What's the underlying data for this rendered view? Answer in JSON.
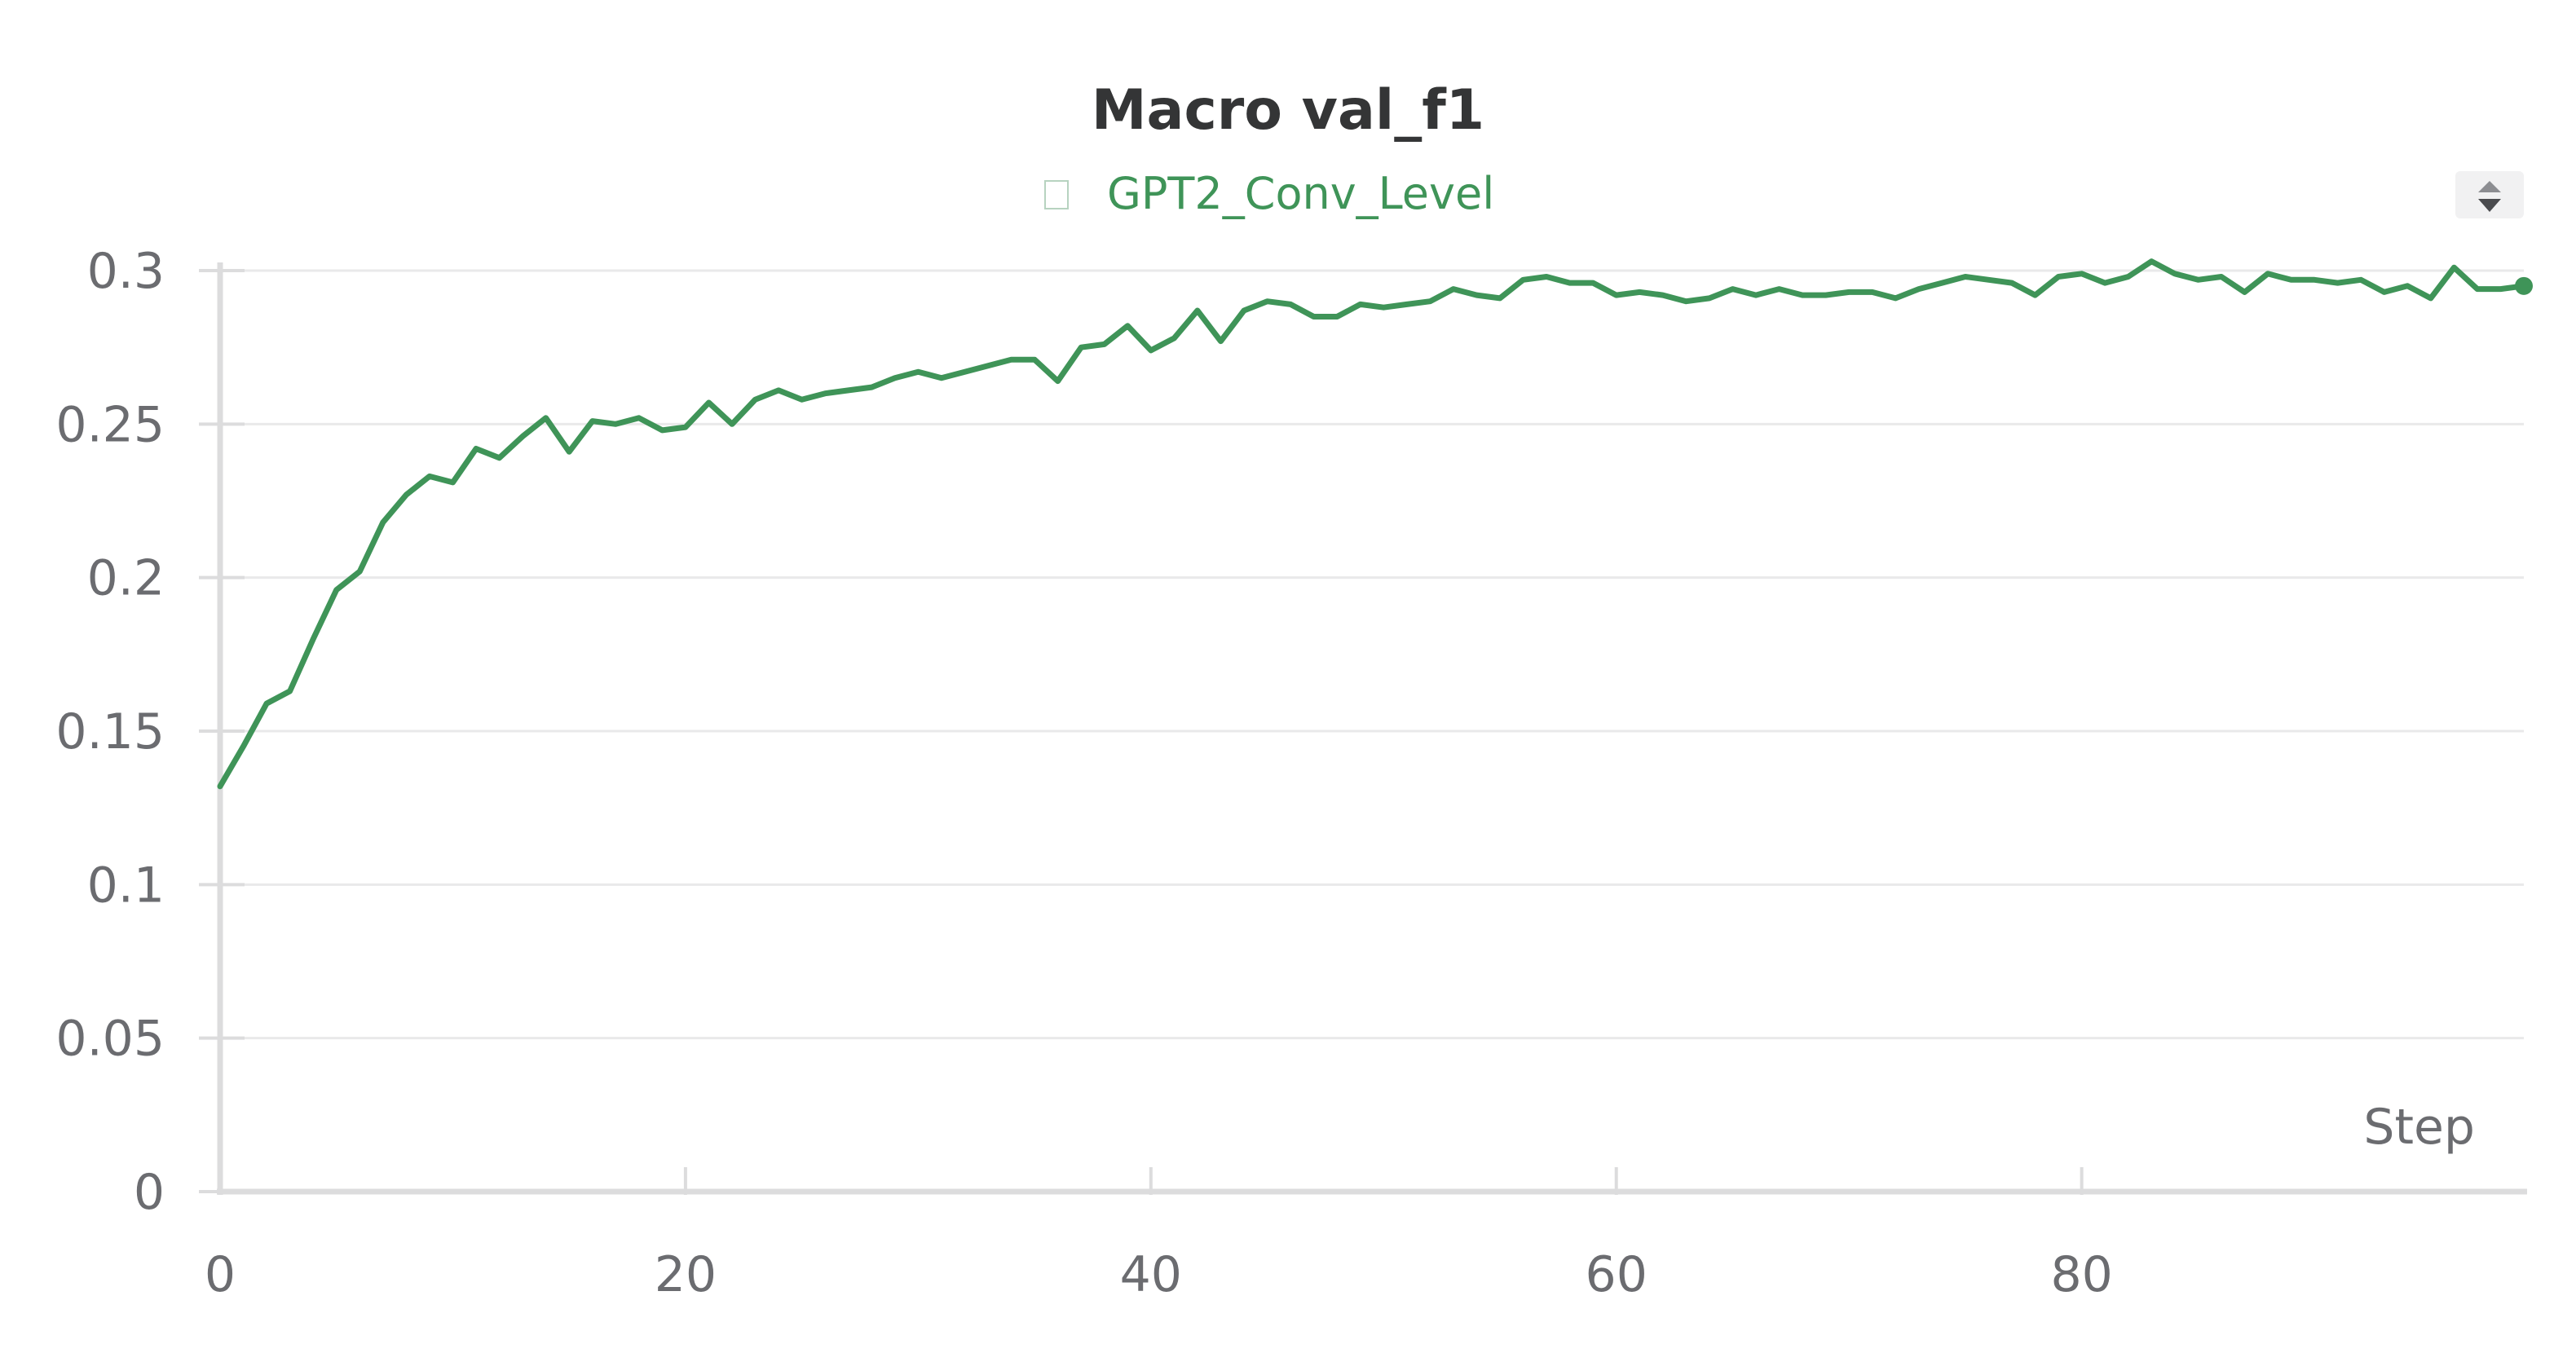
{
  "colors": {
    "series": "#3f9458",
    "grid": "#e9e9ea",
    "axis": "#dcdcdd",
    "text": "#6b6c70",
    "title": "#343536"
  },
  "chart_data": {
    "type": "line",
    "title": "Macro val_f1",
    "xlabel": "Step",
    "ylabel": "",
    "xlim": [
      0,
      99
    ],
    "ylim": [
      0,
      0.3
    ],
    "x_ticks": [
      0,
      20,
      40,
      60,
      80
    ],
    "x_tick_labels": [
      "0",
      "20",
      "40",
      "60",
      "80"
    ],
    "y_ticks": [
      0,
      0.05,
      0.1,
      0.15,
      0.2,
      0.25,
      0.3
    ],
    "y_tick_labels": [
      "0",
      "0.05",
      "0.1",
      "0.15",
      "0.2",
      "0.25",
      "0.3"
    ],
    "grid": true,
    "legend_position": "top-center",
    "series": [
      {
        "name": "GPT2_Conv_Level",
        "color": "#3f9458",
        "x": [
          0,
          1,
          2,
          3,
          4,
          5,
          6,
          7,
          8,
          9,
          10,
          11,
          12,
          13,
          14,
          15,
          16,
          17,
          18,
          19,
          20,
          21,
          22,
          23,
          24,
          25,
          26,
          27,
          28,
          29,
          30,
          31,
          32,
          33,
          34,
          35,
          36,
          37,
          38,
          39,
          40,
          41,
          42,
          43,
          44,
          45,
          46,
          47,
          48,
          49,
          50,
          51,
          52,
          53,
          54,
          55,
          56,
          57,
          58,
          59,
          60,
          61,
          62,
          63,
          64,
          65,
          66,
          67,
          68,
          69,
          70,
          71,
          72,
          73,
          74,
          75,
          76,
          77,
          78,
          79,
          80,
          81,
          82,
          83,
          84,
          85,
          86,
          87,
          88,
          89,
          90,
          91,
          92,
          93,
          94,
          95,
          96,
          97,
          98,
          99
        ],
        "values": [
          0.132,
          0.145,
          0.159,
          0.163,
          0.18,
          0.196,
          0.202,
          0.218,
          0.227,
          0.233,
          0.231,
          0.242,
          0.239,
          0.246,
          0.252,
          0.241,
          0.251,
          0.25,
          0.252,
          0.248,
          0.249,
          0.257,
          0.25,
          0.258,
          0.261,
          0.258,
          0.26,
          0.261,
          0.262,
          0.265,
          0.267,
          0.265,
          0.267,
          0.269,
          0.271,
          0.271,
          0.264,
          0.275,
          0.276,
          0.282,
          0.274,
          0.278,
          0.287,
          0.277,
          0.287,
          0.29,
          0.289,
          0.285,
          0.285,
          0.289,
          0.288,
          0.289,
          0.29,
          0.294,
          0.292,
          0.291,
          0.297,
          0.298,
          0.296,
          0.296,
          0.292,
          0.293,
          0.292,
          0.29,
          0.291,
          0.294,
          0.292,
          0.294,
          0.292,
          0.292,
          0.293,
          0.293,
          0.291,
          0.294,
          0.296,
          0.298,
          0.297,
          0.296,
          0.292,
          0.298,
          0.299,
          0.296,
          0.298,
          0.303,
          0.299,
          0.297,
          0.298,
          0.293,
          0.299,
          0.297,
          0.297,
          0.296,
          0.297,
          0.293,
          0.295,
          0.291,
          0.301,
          0.294,
          0.294,
          0.295
        ]
      }
    ]
  }
}
